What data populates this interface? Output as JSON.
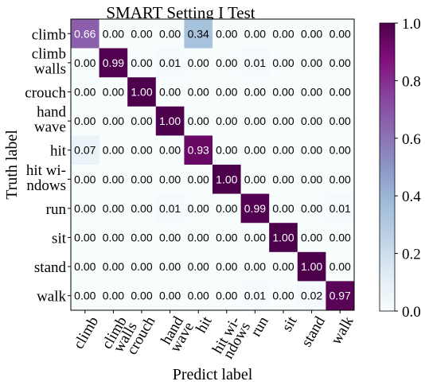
{
  "chart_data": {
    "type": "heatmap",
    "title": "SMART Setting I Test",
    "xlabel": "Predict label",
    "ylabel": "Truth label",
    "x_tick_labels": [
      [
        "climb"
      ],
      [
        "climb",
        "walls"
      ],
      [
        "crouch"
      ],
      [
        "hand",
        "wave"
      ],
      [
        "hit"
      ],
      [
        "hit wi-",
        "ndows"
      ],
      [
        "run"
      ],
      [
        "sit"
      ],
      [
        "stand"
      ],
      [
        "walk"
      ]
    ],
    "y_tick_labels": [
      [
        "climb"
      ],
      [
        "climb",
        "walls"
      ],
      [
        "crouch"
      ],
      [
        "hand",
        "wave"
      ],
      [
        "hit"
      ],
      [
        "hit wi-",
        "ndows"
      ],
      [
        "run"
      ],
      [
        "sit"
      ],
      [
        "stand"
      ],
      [
        "walk"
      ]
    ],
    "matrix": [
      [
        0.66,
        0.0,
        0.0,
        0.0,
        0.34,
        0.0,
        0.0,
        0.0,
        0.0,
        0.0
      ],
      [
        0.0,
        0.99,
        0.0,
        0.01,
        0.0,
        0.0,
        0.01,
        0.0,
        0.0,
        0.0
      ],
      [
        0.0,
        0.0,
        1.0,
        0.0,
        0.0,
        0.0,
        0.0,
        0.0,
        0.0,
        0.0
      ],
      [
        0.0,
        0.0,
        0.0,
        1.0,
        0.0,
        0.0,
        0.0,
        0.0,
        0.0,
        0.0
      ],
      [
        0.07,
        0.0,
        0.0,
        0.0,
        0.93,
        0.0,
        0.0,
        0.0,
        0.0,
        0.0
      ],
      [
        0.0,
        0.0,
        0.0,
        0.0,
        0.0,
        1.0,
        0.0,
        0.0,
        0.0,
        0.0
      ],
      [
        0.0,
        0.0,
        0.0,
        0.01,
        0.0,
        0.0,
        0.99,
        0.0,
        0.0,
        0.01
      ],
      [
        0.0,
        0.0,
        0.0,
        0.0,
        0.0,
        0.0,
        0.0,
        1.0,
        0.0,
        0.0
      ],
      [
        0.0,
        0.0,
        0.0,
        0.0,
        0.0,
        0.0,
        0.0,
        0.0,
        1.0,
        0.0
      ],
      [
        0.0,
        0.0,
        0.0,
        0.0,
        0.0,
        0.0,
        0.01,
        0.0,
        0.02,
        0.97
      ]
    ],
    "colorbar": {
      "range": [
        0.0,
        1.0
      ],
      "ticks": [
        "0.0",
        "0.2",
        "0.4",
        "0.6",
        "0.8",
        "1.0"
      ],
      "colormap": "BuPu",
      "color_stops": [
        "#f7fcfd",
        "#e0ecf4",
        "#bfd3e6",
        "#9ebcda",
        "#8c96c6",
        "#8c6bb1",
        "#88419d",
        "#810f7c",
        "#4d004b"
      ]
    },
    "grid": false
  }
}
